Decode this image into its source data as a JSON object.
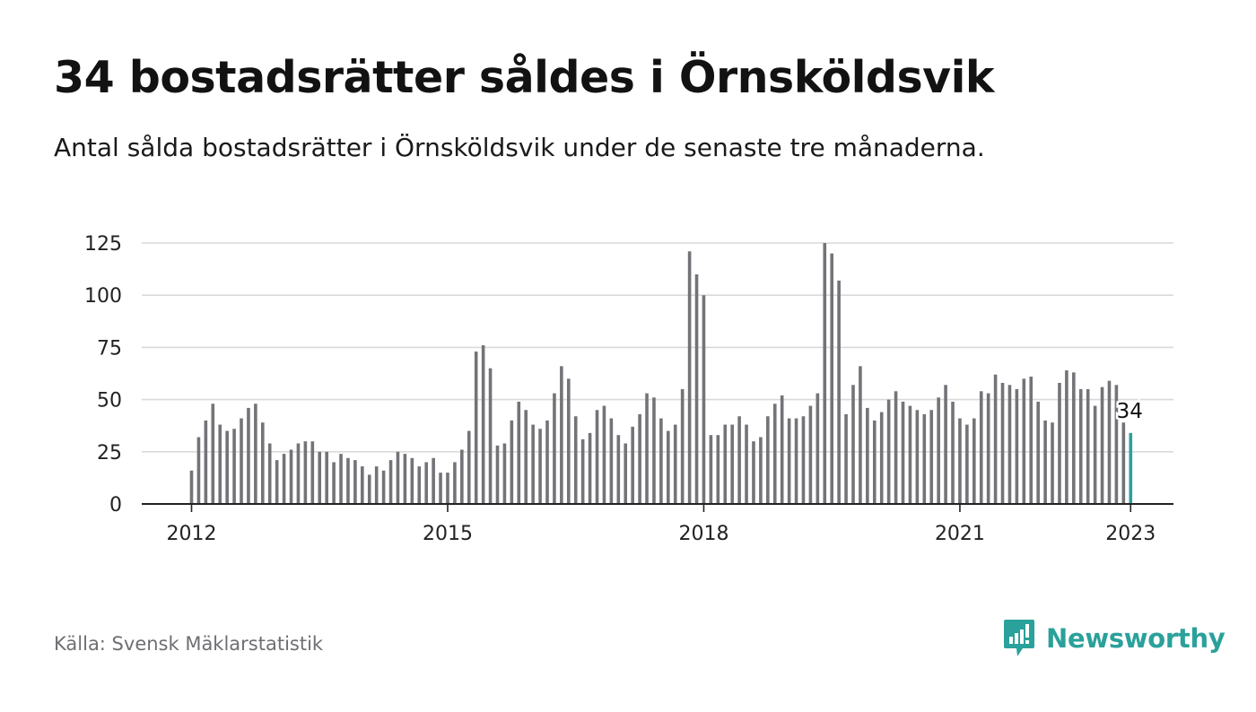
{
  "title": "34 bostadsrätter såldes i Örnsköldsvik",
  "subtitle": "Antal sålda bostadsrätter i Örnsköldsvik under de senaste tre månaderna.",
  "source": "Källa: Svensk Mäklarstatistik",
  "brand": {
    "name": "Newsworthy"
  },
  "colors": {
    "bar": "#737378",
    "highlight": "#2aa19b",
    "grid": "#d9d9d9",
    "axis": "#222222",
    "brand": "#2aa19b"
  },
  "chart_data": {
    "type": "bar",
    "x_start": "2012-01",
    "x_ticks": [
      "2012",
      "2015",
      "2018",
      "2021",
      "2023"
    ],
    "y_ticks": [
      0,
      25,
      50,
      75,
      100,
      125
    ],
    "ylim": [
      0,
      125
    ],
    "grid": true,
    "highlight_label": "34",
    "values": [
      16,
      32,
      40,
      48,
      38,
      35,
      36,
      41,
      46,
      48,
      39,
      29,
      21,
      24,
      26,
      29,
      30,
      30,
      25,
      25,
      20,
      24,
      22,
      21,
      18,
      14,
      18,
      16,
      21,
      25,
      24,
      22,
      18,
      20,
      22,
      15,
      15,
      20,
      26,
      35,
      73,
      76,
      65,
      28,
      29,
      40,
      49,
      45,
      38,
      36,
      40,
      53,
      66,
      60,
      42,
      31,
      34,
      45,
      47,
      41,
      33,
      29,
      37,
      43,
      53,
      51,
      41,
      35,
      38,
      55,
      121,
      110,
      100,
      33,
      33,
      38,
      38,
      42,
      38,
      30,
      32,
      42,
      48,
      52,
      41,
      41,
      42,
      47,
      53,
      125,
      120,
      107,
      43,
      57,
      66,
      46,
      40,
      44,
      50,
      54,
      49,
      47,
      45,
      43,
      45,
      51,
      57,
      49,
      41,
      38,
      41,
      54,
      53,
      62,
      58,
      57,
      55,
      60,
      61,
      49,
      40,
      39,
      58,
      64,
      63,
      55,
      55,
      47,
      56,
      59,
      57,
      39,
      34
    ]
  }
}
